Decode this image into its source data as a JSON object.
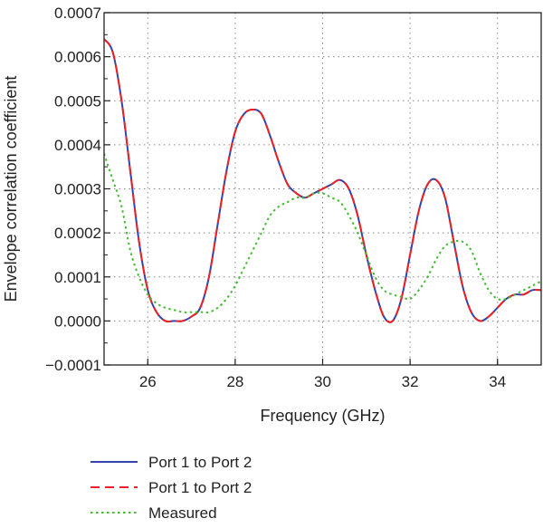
{
  "chart_data": {
    "type": "line",
    "xlabel": "Frequency (GHz)",
    "ylabel": "Envelope correlation coefficient",
    "xlim": [
      25,
      35
    ],
    "ylim": [
      -0.0001,
      0.0007
    ],
    "xticks": [
      26,
      28,
      30,
      32,
      34
    ],
    "xtick_labels": [
      "26",
      "28",
      "30",
      "32",
      "34"
    ],
    "yticks": [
      -0.0001,
      0,
      0.0001,
      0.0002,
      0.0003,
      0.0004,
      0.0005,
      0.0006,
      0.0007
    ],
    "ytick_labels": [
      "−0.0001",
      "0.0000",
      "0.0001",
      "0.0002",
      "0.0003",
      "0.0004",
      "0.0005",
      "0.0006",
      "0.0007"
    ],
    "grid": true,
    "legend_position": "bottom",
    "series": [
      {
        "name": "Port 1 to Port 2",
        "color": "#3344aa",
        "style": "solid",
        "x": [
          25.0,
          25.2,
          25.4,
          25.6,
          25.8,
          26.0,
          26.2,
          26.4,
          26.6,
          26.8,
          27.0,
          27.2,
          27.4,
          27.6,
          27.8,
          28.0,
          28.2,
          28.4,
          28.6,
          28.8,
          29.0,
          29.2,
          29.4,
          29.6,
          29.8,
          30.0,
          30.2,
          30.4,
          30.6,
          30.8,
          31.0,
          31.2,
          31.4,
          31.6,
          31.8,
          32.0,
          32.2,
          32.4,
          32.6,
          32.8,
          33.0,
          33.2,
          33.4,
          33.6,
          33.8,
          34.0,
          34.2,
          34.4,
          34.6,
          34.8,
          35.0
        ],
        "y": [
          0.00064,
          0.00061,
          0.0005,
          0.00034,
          0.00018,
          7e-05,
          2e-05,
          0.0,
          0.0,
          0.0,
          1e-05,
          3e-05,
          0.0001,
          0.00022,
          0.00034,
          0.00043,
          0.00047,
          0.00048,
          0.00047,
          0.00042,
          0.00036,
          0.00031,
          0.00029,
          0.00028,
          0.00029,
          0.0003,
          0.00031,
          0.00032,
          0.0003,
          0.00024,
          0.00015,
          7e-05,
          1e-05,
          0.0,
          5e-05,
          0.00015,
          0.00025,
          0.00031,
          0.00032,
          0.00028,
          0.00018,
          8e-05,
          2e-05,
          0.0,
          1e-05,
          3e-05,
          5e-05,
          6e-05,
          6e-05,
          7e-05,
          7e-05
        ]
      },
      {
        "name": "Port 1 to Port 2",
        "color": "#ee2222",
        "style": "dashed",
        "x": [
          25.0,
          25.2,
          25.4,
          25.6,
          25.8,
          26.0,
          26.2,
          26.4,
          26.6,
          26.8,
          27.0,
          27.2,
          27.4,
          27.6,
          27.8,
          28.0,
          28.2,
          28.4,
          28.6,
          28.8,
          29.0,
          29.2,
          29.4,
          29.6,
          29.8,
          30.0,
          30.2,
          30.4,
          30.6,
          30.8,
          31.0,
          31.2,
          31.4,
          31.6,
          31.8,
          32.0,
          32.2,
          32.4,
          32.6,
          32.8,
          33.0,
          33.2,
          33.4,
          33.6,
          33.8,
          34.0,
          34.2,
          34.4,
          34.6,
          34.8,
          35.0
        ],
        "y": [
          0.00064,
          0.00061,
          0.0005,
          0.00034,
          0.00018,
          7e-05,
          2e-05,
          0.0,
          0.0,
          0.0,
          1e-05,
          3e-05,
          0.0001,
          0.00022,
          0.00034,
          0.00043,
          0.00047,
          0.00048,
          0.00047,
          0.00042,
          0.00036,
          0.00031,
          0.00029,
          0.00028,
          0.00029,
          0.0003,
          0.00031,
          0.00032,
          0.0003,
          0.00024,
          0.00015,
          7e-05,
          1e-05,
          0.0,
          5e-05,
          0.00015,
          0.00025,
          0.00031,
          0.00032,
          0.00028,
          0.00018,
          8e-05,
          2e-05,
          0.0,
          1e-05,
          3e-05,
          5e-05,
          6e-05,
          6e-05,
          7e-05,
          7e-05
        ]
      },
      {
        "name": "Measured",
        "color": "#44bb33",
        "style": "dotted",
        "x": [
          25.0,
          25.2,
          25.4,
          25.6,
          25.8,
          26.0,
          26.2,
          26.4,
          26.6,
          26.8,
          27.0,
          27.2,
          27.4,
          27.6,
          27.8,
          28.0,
          28.2,
          28.4,
          28.6,
          28.8,
          29.0,
          29.2,
          29.4,
          29.6,
          29.8,
          30.0,
          30.2,
          30.4,
          30.6,
          30.8,
          31.0,
          31.2,
          31.4,
          31.6,
          31.8,
          32.0,
          32.2,
          32.4,
          32.6,
          32.8,
          33.0,
          33.2,
          33.4,
          33.6,
          33.8,
          34.0,
          34.2,
          34.4,
          34.6,
          34.8,
          35.0
        ],
        "y": [
          0.00038,
          0.00032,
          0.00026,
          0.00016,
          0.0001,
          6e-05,
          4e-05,
          3e-05,
          2.5e-05,
          2e-05,
          2e-05,
          2e-05,
          2e-05,
          3e-05,
          5e-05,
          8e-05,
          0.00012,
          0.00016,
          0.0002,
          0.00024,
          0.00026,
          0.00027,
          0.00028,
          0.00028,
          0.00029,
          0.00029,
          0.00028,
          0.00027,
          0.00024,
          0.0002,
          0.00015,
          0.0001,
          7e-05,
          6e-05,
          5.5e-05,
          5e-05,
          7e-05,
          0.0001,
          0.00014,
          0.00017,
          0.00018,
          0.00018,
          0.00016,
          0.00011,
          7e-05,
          5e-05,
          5e-05,
          6e-05,
          7e-05,
          8e-05,
          9e-05
        ]
      }
    ]
  }
}
